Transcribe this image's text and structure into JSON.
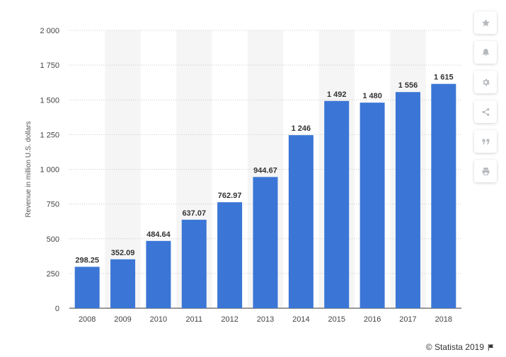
{
  "chart_data": {
    "type": "bar",
    "categories": [
      "2008",
      "2009",
      "2010",
      "2011",
      "2012",
      "2013",
      "2014",
      "2015",
      "2016",
      "2017",
      "2018"
    ],
    "values": [
      298.25,
      352.09,
      484.64,
      637.07,
      762.97,
      944.67,
      1246,
      1492,
      1480,
      1556,
      1615
    ],
    "value_labels": [
      "298.25",
      "352.09",
      "484.64",
      "637.07",
      "762.97",
      "944.67",
      "1 246",
      "1 492",
      "1 480",
      "1 556",
      "1 615"
    ],
    "ylabel": "Revenue in million U.S. dollars",
    "ylim": [
      0,
      2000
    ],
    "yticks": [
      0,
      250,
      500,
      750,
      1000,
      1250,
      1500,
      1750,
      2000
    ],
    "ytick_labels": [
      "0",
      "250",
      "500",
      "750",
      "1 000",
      "1 250",
      "1 500",
      "1 750",
      "2 000"
    ],
    "grid": true,
    "bar_color": "#3b76d6"
  },
  "sidebar": {
    "buttons": [
      {
        "icon": "star-icon"
      },
      {
        "icon": "bell-icon"
      },
      {
        "icon": "gear-icon"
      },
      {
        "icon": "share-icon"
      },
      {
        "icon": "quote-icon"
      },
      {
        "icon": "print-icon"
      }
    ]
  },
  "footer": {
    "credit": "© Statista 2019"
  }
}
